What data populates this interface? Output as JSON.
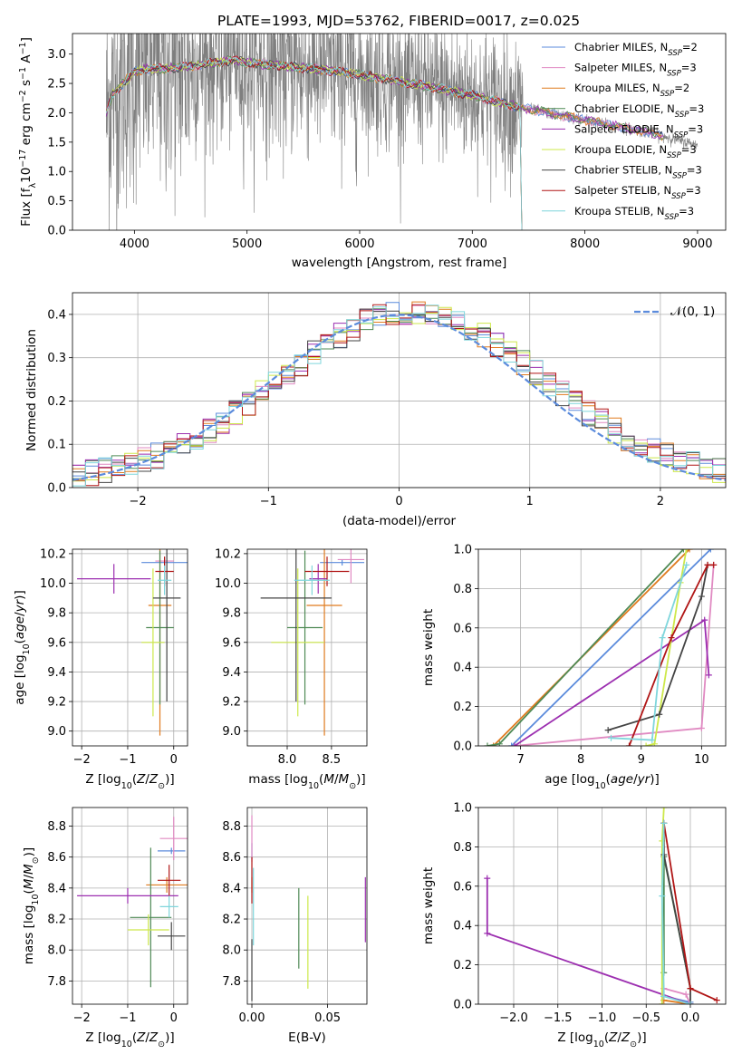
{
  "figure_title": "PLATE=1993, MJD=53762, FIBERID=0017, z=0.025",
  "colors": {
    "Chabrier MILES": "#5b8bdc",
    "Salpeter MILES": "#e08ac2",
    "Kroupa MILES": "#e07b1f",
    "Chabrier ELODIE": "#4f8a55",
    "Salpeter ELODIE": "#9c2fb0",
    "Kroupa ELODIE": "#cde84a",
    "Chabrier STELIB": "#444444",
    "Salpeter STELIB": "#b01515",
    "Kroupa STELIB": "#7fd6dc",
    "data": "#7f7f7f",
    "normal": "#5b8bdc"
  },
  "chart_data": [
    {
      "id": "spectrum",
      "type": "line",
      "title": "PLATE=1993, MJD=53762, FIBERID=0017, z=0.025",
      "xlabel": "wavelength [Angstrom, rest frame]",
      "ylabel": "Flux [f_λ 10^-17 erg cm^-2 s^-1 A^-1]",
      "xlim": [
        3450,
        9250
      ],
      "ylim": [
        0,
        3.35
      ],
      "xticks": [
        "4000",
        "5000",
        "6000",
        "7000",
        "8000",
        "9000"
      ],
      "yticks": [
        "0.0",
        "0.5",
        "1.0",
        "1.5",
        "2.0",
        "2.5",
        "3.0"
      ],
      "grid": false,
      "legend_position": "top-right",
      "legend": [
        {
          "name": "Chabrier MILES",
          "nssp": "2"
        },
        {
          "name": "Salpeter MILES",
          "nssp": "3"
        },
        {
          "name": "Kroupa MILES",
          "nssp": "2"
        },
        {
          "name": "Chabrier ELODIE",
          "nssp": "3"
        },
        {
          "name": "Salpeter ELODIE",
          "nssp": "3"
        },
        {
          "name": "Kroupa ELODIE",
          "nssp": "3"
        },
        {
          "name": "Chabrier STELIB",
          "nssp": "3"
        },
        {
          "name": "Salpeter STELIB",
          "nssp": "3"
        },
        {
          "name": "Kroupa STELIB",
          "nssp": "3"
        }
      ],
      "continuum": {
        "x": [
          3750,
          3800,
          3900,
          4000,
          4100,
          4300,
          4500,
          4700,
          4900,
          5000,
          5300,
          5600,
          6000,
          6300,
          6600,
          7000,
          7400,
          7800,
          8200,
          8600,
          9000
        ],
        "y": [
          2.0,
          2.3,
          2.5,
          2.7,
          2.75,
          2.75,
          2.8,
          2.85,
          2.9,
          2.85,
          2.8,
          2.75,
          2.65,
          2.55,
          2.45,
          2.3,
          2.1,
          1.95,
          1.8,
          1.65,
          1.45
        ]
      }
    },
    {
      "id": "residuals",
      "type": "histogram",
      "xlabel": "(data-model)/error",
      "ylabel": "Normed distribution",
      "xlim": [
        -2.5,
        2.5
      ],
      "ylim": [
        0,
        0.45
      ],
      "xticks": [
        "−2",
        "−1",
        "0",
        "1",
        "2"
      ],
      "yticks": [
        "0.0",
        "0.1",
        "0.2",
        "0.3",
        "0.4"
      ],
      "grid": true,
      "legend_position": "top-right",
      "legend": [
        {
          "name": "𝒩(0, 1)"
        }
      ],
      "bin_width": 0.1
    },
    {
      "id": "age_vs_Z",
      "type": "scatter",
      "xlabel": "Z [log10(Z/Z⊙)]",
      "ylabel": "age [log10(age/yr)]",
      "xlim": [
        -2.2,
        0.3
      ],
      "ylim": [
        8.9,
        10.23
      ],
      "xticks": [
        "−2",
        "−1",
        "0"
      ],
      "yticks": [
        "9.0",
        "9.2",
        "9.4",
        "9.6",
        "9.8",
        "10.0",
        "10.2"
      ],
      "grid": true,
      "points": [
        {
          "series": "Chabrier MILES",
          "x": -0.2,
          "y": 10.14,
          "xerr": 0.5,
          "yerr": 0.02
        },
        {
          "series": "Salpeter MILES",
          "x": -0.2,
          "y": 10.15,
          "xerr": 0.2,
          "yerr": 0.03
        },
        {
          "series": "Kroupa MILES",
          "x": -0.3,
          "y": 9.85,
          "xerr": 0.25,
          "yerr": 0.88
        },
        {
          "series": "Chabrier ELODIE",
          "x": -0.3,
          "y": 9.7,
          "xerr": 0.3,
          "yerr": 0.52
        },
        {
          "series": "Salpeter ELODIE",
          "x": -1.3,
          "y": 10.03,
          "xerr": 0.8,
          "yerr": 0.1
        },
        {
          "series": "Kroupa ELODIE",
          "x": -0.45,
          "y": 9.6,
          "xerr": 0.25,
          "yerr": 0.5
        },
        {
          "series": "Chabrier STELIB",
          "x": -0.15,
          "y": 9.9,
          "xerr": 0.3,
          "yerr": 0.7
        },
        {
          "series": "Salpeter STELIB",
          "x": -0.2,
          "y": 10.08,
          "xerr": 0.2,
          "yerr": 0.1
        },
        {
          "series": "Kroupa STELIB",
          "x": -0.2,
          "y": 10.02,
          "xerr": 0.15,
          "yerr": 0.1
        }
      ]
    },
    {
      "id": "age_vs_mass",
      "type": "scatter",
      "xlabel": "mass [log10(M/M⊙)]",
      "ylabel": "",
      "xlim": [
        7.55,
        8.9
      ],
      "ylim": [
        8.9,
        10.23
      ],
      "xticks": [
        "8.0",
        "8.5"
      ],
      "yticks": [
        "9.0",
        "9.2",
        "9.4",
        "9.6",
        "9.8",
        "10.0",
        "10.2"
      ],
      "grid": true,
      "points": [
        {
          "series": "Chabrier MILES",
          "x": 8.62,
          "y": 10.14,
          "xerr": 0.25,
          "yerr": 0.02
        },
        {
          "series": "Salpeter MILES",
          "x": 8.72,
          "y": 10.16,
          "xerr": 0.15,
          "yerr": 0.16
        },
        {
          "series": "Kroupa MILES",
          "x": 8.42,
          "y": 9.85,
          "xerr": 0.2,
          "yerr": 0.88
        },
        {
          "series": "Chabrier ELODIE",
          "x": 8.2,
          "y": 9.7,
          "xerr": 0.2,
          "yerr": 0.52
        },
        {
          "series": "Salpeter ELODIE",
          "x": 8.35,
          "y": 10.03,
          "xerr": 0.1,
          "yerr": 0.1
        },
        {
          "series": "Kroupa ELODIE",
          "x": 8.12,
          "y": 9.6,
          "xerr": 0.3,
          "yerr": 0.5
        },
        {
          "series": "Chabrier STELIB",
          "x": 8.1,
          "y": 9.9,
          "xerr": 0.4,
          "yerr": 0.7
        },
        {
          "series": "Salpeter STELIB",
          "x": 8.45,
          "y": 10.08,
          "xerr": 0.25,
          "yerr": 0.1
        },
        {
          "series": "Kroupa STELIB",
          "x": 8.28,
          "y": 10.02,
          "xerr": 0.2,
          "yerr": 0.1
        }
      ]
    },
    {
      "id": "cumulative_age",
      "type": "line",
      "xlabel": "age [log10(age/yr)]",
      "ylabel": "mass weight",
      "xlim": [
        6.3,
        10.4
      ],
      "ylim": [
        0,
        1
      ],
      "xticks": [
        "7",
        "8",
        "9",
        "10"
      ],
      "yticks": [
        "0.0",
        "0.2",
        "0.4",
        "0.6",
        "0.8",
        "1.0"
      ],
      "grid": true,
      "series": [
        {
          "name": "Chabrier MILES",
          "x": [
            6.85,
            10.15
          ],
          "y": [
            0,
            1.0
          ]
        },
        {
          "name": "Salpeter MILES",
          "x": [
            6.9,
            10.0,
            10.2
          ],
          "y": [
            0,
            0.09,
            0.92
          ]
        },
        {
          "name": "Kroupa MILES",
          "x": [
            6.55,
            9.8
          ],
          "y": [
            0,
            1.0
          ]
        },
        {
          "name": "Chabrier ELODIE",
          "x": [
            6.45,
            6.65,
            9.7
          ],
          "y": [
            0,
            0.01,
            1.0
          ]
        },
        {
          "name": "Salpeter ELODIE",
          "x": [
            6.9,
            10.05,
            10.12
          ],
          "y": [
            0,
            0.64,
            0.36
          ]
        },
        {
          "name": "Kroupa ELODIE",
          "x": [
            9.08,
            9.22,
            9.65,
            9.75
          ],
          "y": [
            0,
            0.01,
            0.83,
            1.0
          ]
        },
        {
          "name": "Chabrier STELIB",
          "x": [
            8.45,
            9.3,
            10.0,
            10.1
          ],
          "y": [
            0.08,
            0.16,
            0.76,
            0.92
          ]
        },
        {
          "name": "Salpeter STELIB",
          "x": [
            8.8,
            9.5,
            10.1,
            10.2
          ],
          "y": [
            0,
            0.55,
            0.92,
            0.92
          ]
        },
        {
          "name": "Kroupa STELIB",
          "x": [
            8.5,
            9.18,
            9.35,
            9.75
          ],
          "y": [
            0.04,
            0.03,
            0.55,
            0.92
          ]
        }
      ]
    },
    {
      "id": "mass_vs_Z",
      "type": "scatter",
      "xlabel": "Z [log10(Z/Z⊙)]",
      "ylabel": "mass [log10(M/M⊙)]",
      "xlim": [
        -2.2,
        0.3
      ],
      "ylim": [
        7.65,
        8.92
      ],
      "xticks": [
        "−2",
        "−1",
        "0"
      ],
      "yticks": [
        "7.8",
        "8.0",
        "8.2",
        "8.4",
        "8.6",
        "8.8"
      ],
      "grid": true,
      "points": [
        {
          "series": "Chabrier MILES",
          "x": -0.05,
          "y": 8.64,
          "xerr": 0.3,
          "yerr": 0.02
        },
        {
          "series": "Salpeter MILES",
          "x": 0.0,
          "y": 8.72,
          "xerr": 0.3,
          "yerr": 0.14
        },
        {
          "series": "Kroupa MILES",
          "x": -0.15,
          "y": 8.42,
          "xerr": 0.45,
          "yerr": 0.05
        },
        {
          "series": "Chabrier ELODIE",
          "x": -0.5,
          "y": 8.21,
          "xerr": 0.45,
          "yerr": 0.45
        },
        {
          "series": "Salpeter ELODIE",
          "x": -1.0,
          "y": 8.35,
          "xerr": 1.1,
          "yerr": 0.05
        },
        {
          "series": "Kroupa ELODIE",
          "x": -0.55,
          "y": 8.13,
          "xerr": 0.45,
          "yerr": 0.1
        },
        {
          "series": "Chabrier STELIB",
          "x": -0.05,
          "y": 8.09,
          "xerr": 0.3,
          "yerr": 0.09
        },
        {
          "series": "Salpeter STELIB",
          "x": -0.1,
          "y": 8.45,
          "xerr": 0.25,
          "yerr": 0.1
        },
        {
          "series": "Kroupa STELIB",
          "x": -0.1,
          "y": 8.28,
          "xerr": 0.2,
          "yerr": 0.07
        }
      ]
    },
    {
      "id": "mass_vs_EBV",
      "type": "scatter",
      "xlabel": "E(B-V)",
      "ylabel": "",
      "xlim": [
        -0.003,
        0.076
      ],
      "ylim": [
        7.65,
        8.92
      ],
      "xticks": [
        "0.00",
        "0.05"
      ],
      "yticks": [
        "7.8",
        "8.0",
        "8.2",
        "8.4",
        "8.6",
        "8.8"
      ],
      "grid": true,
      "points": [
        {
          "series": "Chabrier MILES",
          "x": 0.0,
          "y": 8.64,
          "yerr": 0.05
        },
        {
          "series": "Salpeter MILES",
          "x": 0.0,
          "y": 8.72,
          "yerr": 0.15
        },
        {
          "series": "Kroupa MILES",
          "x": 0.0,
          "y": 8.42,
          "yerr": 0.05
        },
        {
          "series": "Chabrier ELODIE",
          "x": 0.031,
          "y": 8.14,
          "yerr": 0.26
        },
        {
          "series": "Salpeter ELODIE",
          "x": 0.075,
          "y": 8.26,
          "yerr": 0.21
        },
        {
          "series": "Kroupa ELODIE",
          "x": 0.037,
          "y": 8.05,
          "yerr": 0.3
        },
        {
          "series": "Chabrier STELIB",
          "x": 0.0,
          "y": 7.87,
          "yerr": 0.2
        },
        {
          "series": "Salpeter STELIB",
          "x": 0.0,
          "y": 8.45,
          "yerr": 0.15
        },
        {
          "series": "Kroupa STELIB",
          "x": 0.001,
          "y": 8.28,
          "yerr": 0.25
        }
      ]
    },
    {
      "id": "cumulative_Z",
      "type": "line",
      "xlabel": "Z [log10(Z/Z⊙)]",
      "ylabel": "mass weight",
      "xlim": [
        -2.4,
        0.4
      ],
      "ylim": [
        0,
        1
      ],
      "xticks": [
        "−2.0",
        "−1.5",
        "−1.0",
        "−0.5",
        "0.0"
      ],
      "yticks": [
        "0.0",
        "0.2",
        "0.4",
        "0.6",
        "0.8",
        "1.0"
      ],
      "grid": true,
      "series": [
        {
          "name": "Chabrier MILES",
          "x": [
            -0.3,
            0.0,
            0.0
          ],
          "y": [
            0.04,
            0.01,
            0.0
          ]
        },
        {
          "name": "Salpeter MILES",
          "x": [
            -0.32,
            -0.3,
            -0.05,
            0.0
          ],
          "y": [
            0,
            0.08,
            0.05,
            0.0
          ]
        },
        {
          "name": "Kroupa MILES",
          "x": [
            -0.3,
            0.0
          ],
          "y": [
            0.02,
            0.0
          ]
        },
        {
          "name": "Chabrier ELODIE",
          "x": [
            -0.3,
            -0.3,
            0.0
          ],
          "y": [
            0.16,
            0.75,
            0.08
          ]
        },
        {
          "name": "Salpeter ELODIE",
          "x": [
            -2.3,
            -2.3,
            0.0,
            0.0
          ],
          "y": [
            0.64,
            0.36,
            0.0,
            0.0
          ]
        },
        {
          "name": "Kroupa ELODIE",
          "x": [
            -0.32,
            -0.32,
            -0.3
          ],
          "y": [
            0.0,
            0.83,
            1.0
          ]
        },
        {
          "name": "Chabrier STELIB",
          "x": [
            -0.3,
            -0.3,
            0.0,
            0.0
          ],
          "y": [
            0.92,
            0.76,
            0.08,
            0.0
          ]
        },
        {
          "name": "Salpeter STELIB",
          "x": [
            -0.3,
            0.0,
            0.3
          ],
          "y": [
            0.92,
            0.08,
            0.02
          ]
        },
        {
          "name": "Kroupa STELIB",
          "x": [
            -0.3,
            -0.32,
            -0.3,
            0.0
          ],
          "y": [
            0.92,
            0.55,
            0.04,
            0.0
          ]
        }
      ]
    }
  ]
}
